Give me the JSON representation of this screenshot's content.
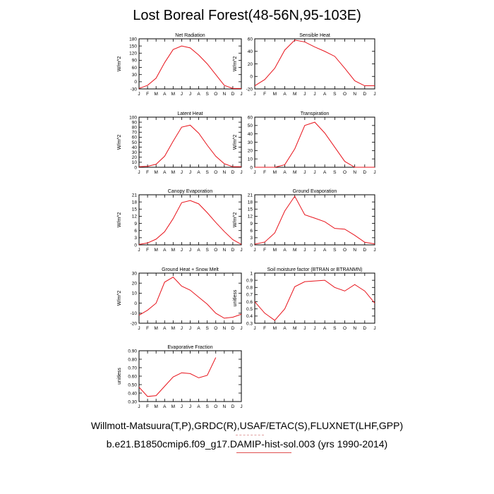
{
  "page": {
    "title": "Lost Boreal Forest(48-56N,95-103E)",
    "footer_line1": "Willmott-Matsuura(T,P),GRDC(R),USAF/ETAC(S),FLUXNET(LHF,GPP)",
    "footer_line2": "b.e21.B1850cmip6.f09_g17.DAMIP-hist-sol.003 (yrs 1990-2014)"
  },
  "colors": {
    "series": "#e8141c",
    "axis": "#000000",
    "background": "#ffffff"
  },
  "chart_data": [
    {
      "type": "line",
      "title": "Net Radiation",
      "ylabel": "W/m^2",
      "categories": [
        "J",
        "F",
        "M",
        "A",
        "M",
        "J",
        "J",
        "A",
        "S",
        "O",
        "N",
        "D",
        "J"
      ],
      "ylim": [
        -30,
        180
      ],
      "yticks": [
        -30,
        0,
        30,
        60,
        90,
        120,
        150,
        180
      ],
      "ytick_labels": [
        "-30",
        "0",
        "30",
        "60",
        "90",
        "120",
        "150",
        "180"
      ],
      "values": [
        -28,
        -15,
        15,
        80,
        135,
        150,
        142,
        112,
        75,
        30,
        -15,
        -28,
        -28
      ]
    },
    {
      "type": "line",
      "title": "Sensible Heat",
      "ylabel": "W/m^2",
      "categories": [
        "J",
        "F",
        "M",
        "A",
        "M",
        "J",
        "J",
        "A",
        "S",
        "O",
        "N",
        "D",
        "J"
      ],
      "ylim": [
        -20,
        60
      ],
      "yticks": [
        -20,
        0,
        20,
        40,
        60
      ],
      "ytick_labels": [
        "-20",
        "0",
        "20",
        "40",
        "60"
      ],
      "values": [
        -15,
        -5,
        13,
        42,
        58,
        55,
        47,
        40,
        32,
        13,
        -7,
        -15,
        -15
      ]
    },
    {
      "type": "line",
      "title": "Latent Heat",
      "ylabel": "W/m^2",
      "categories": [
        "J",
        "F",
        "M",
        "A",
        "M",
        "J",
        "J",
        "A",
        "S",
        "O",
        "N",
        "D",
        "J"
      ],
      "ylim": [
        0,
        100
      ],
      "yticks": [
        0,
        10,
        20,
        30,
        40,
        50,
        60,
        70,
        80,
        90,
        100
      ],
      "ytick_labels": [
        "0",
        "10",
        "20",
        "30",
        "40",
        "50",
        "60",
        "70",
        "80",
        "90",
        "100"
      ],
      "values": [
        1,
        2,
        6,
        22,
        52,
        80,
        84,
        68,
        44,
        22,
        7,
        1,
        1
      ]
    },
    {
      "type": "line",
      "title": "Transpiration",
      "ylabel": "W/m^2",
      "categories": [
        "J",
        "F",
        "M",
        "A",
        "M",
        "J",
        "J",
        "A",
        "S",
        "O",
        "N",
        "D",
        "J"
      ],
      "ylim": [
        0,
        60
      ],
      "yticks": [
        0,
        10,
        20,
        30,
        40,
        50,
        60
      ],
      "ytick_labels": [
        "0",
        "10",
        "20",
        "30",
        "40",
        "50",
        "60"
      ],
      "values": [
        0,
        0,
        0,
        3,
        22,
        50,
        54,
        41,
        24,
        7,
        0,
        0,
        0
      ]
    },
    {
      "type": "line",
      "title": "Canopy Evaporation",
      "ylabel": "W/m^2",
      "categories": [
        "J",
        "F",
        "M",
        "A",
        "M",
        "J",
        "J",
        "A",
        "S",
        "O",
        "N",
        "D",
        "J"
      ],
      "ylim": [
        0,
        21
      ],
      "yticks": [
        0,
        3,
        6,
        9,
        12,
        15,
        18,
        21
      ],
      "ytick_labels": [
        "0",
        "3",
        "6",
        "9",
        "12",
        "15",
        "18",
        "21"
      ],
      "values": [
        0.2,
        0.8,
        2.4,
        5.5,
        11,
        17.7,
        18.6,
        17.2,
        13.5,
        9.4,
        5.6,
        2.2,
        0.2
      ]
    },
    {
      "type": "line",
      "title": "Ground Evaporation",
      "ylabel": "W/m^2",
      "categories": [
        "J",
        "F",
        "M",
        "A",
        "M",
        "J",
        "J",
        "A",
        "S",
        "O",
        "N",
        "D",
        "J"
      ],
      "ylim": [
        0,
        21
      ],
      "yticks": [
        0,
        3,
        6,
        9,
        12,
        15,
        18,
        21
      ],
      "ytick_labels": [
        "0",
        "3",
        "6",
        "9",
        "12",
        "15",
        "18",
        "21"
      ],
      "values": [
        0.3,
        1.2,
        5,
        14.2,
        20.4,
        12.6,
        11.2,
        9.7,
        6.9,
        6.6,
        4,
        1.1,
        0.4
      ]
    },
    {
      "type": "line",
      "title": "Ground Heat + Snow Melt",
      "ylabel": "W/m^2",
      "categories": [
        "J",
        "F",
        "M",
        "A",
        "M",
        "J",
        "J",
        "A",
        "S",
        "O",
        "N",
        "D",
        "J"
      ],
      "ylim": [
        -20,
        30
      ],
      "yticks": [
        -20,
        -10,
        0,
        10,
        20,
        30
      ],
      "ytick_labels": [
        "-20",
        "-10",
        "0",
        "10",
        "20",
        "30"
      ],
      "values": [
        -12,
        -7,
        0,
        21,
        26,
        17,
        13,
        6,
        -1,
        -10,
        -15,
        -14,
        -11
      ]
    },
    {
      "type": "line",
      "title": "Soil moisture factor (BTRAN or BTRANMN)",
      "ylabel": "unitless",
      "categories": [
        "J",
        "F",
        "M",
        "A",
        "M",
        "J",
        "J",
        "A",
        "S",
        "O",
        "N",
        "D",
        "J"
      ],
      "ylim": [
        0.3,
        1.0
      ],
      "yticks": [
        0.3,
        0.4,
        0.5,
        0.6,
        0.7,
        0.8,
        0.9,
        1.0
      ],
      "ytick_labels": [
        "0.3",
        "0.4",
        "0.5",
        "0.6",
        "0.7",
        "0.8",
        "0.9",
        "1"
      ],
      "values": [
        0.6,
        0.44,
        0.34,
        0.5,
        0.81,
        0.88,
        0.89,
        0.9,
        0.8,
        0.75,
        0.84,
        0.75,
        0.58
      ]
    },
    {
      "type": "line",
      "title": "Evaporative Fraction",
      "ylabel": "unitless",
      "categories": [
        "J",
        "F",
        "M",
        "A",
        "M",
        "J",
        "J",
        "A",
        "S",
        "O",
        "N",
        "D",
        "J"
      ],
      "ylim": [
        0.3,
        0.9
      ],
      "yticks": [
        0.3,
        0.4,
        0.5,
        0.6,
        0.7,
        0.8,
        0.9
      ],
      "ytick_labels": [
        "0.30",
        "0.40",
        "0.50",
        "0.60",
        "0.70",
        "0.80",
        "0.90"
      ],
      "values": [
        0.47,
        0.36,
        0.37,
        0.48,
        0.59,
        0.64,
        0.63,
        0.58,
        0.61,
        0.82,
        null,
        null,
        null
      ]
    }
  ]
}
